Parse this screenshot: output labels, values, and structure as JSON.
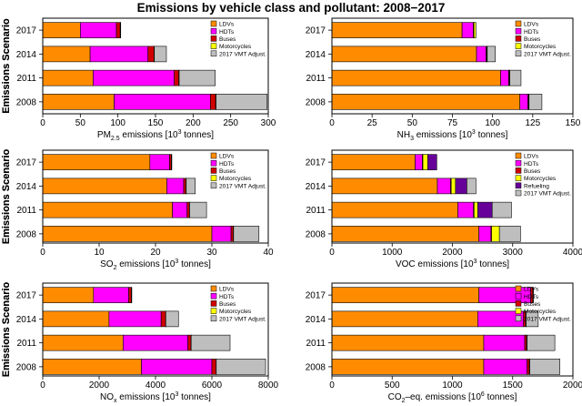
{
  "title": "Emissions by vehicle class and pollutant: 2008−2017",
  "colors": {
    "LDVs": "#ff8c00",
    "HDTs": "#ff00ff",
    "Buses": "#d10000",
    "Motorcycles": "#ffff00",
    "Refueling": "#660099",
    "2017 VMT Adjust.": "#bebebe"
  },
  "chart_data": [
    {
      "type": "bar",
      "stacked": true,
      "orientation": "horizontal",
      "xlabel_parts": [
        "PM",
        "2.5",
        " emissions [10",
        "3",
        " tonnes]"
      ],
      "ylabel": "Emissions Scenario",
      "categories": [
        "2017",
        "2014",
        "2011",
        "2008"
      ],
      "xlim": [
        0,
        300
      ],
      "xticks": [
        0,
        50,
        100,
        150,
        200,
        250,
        300
      ],
      "legend": [
        "LDVs",
        "HDTs",
        "Buses",
        "Motorcycles",
        "2017 VMT Adjust."
      ],
      "series": [
        {
          "name": "LDVs",
          "values": [
            50,
            63,
            67,
            95
          ]
        },
        {
          "name": "HDTs",
          "values": [
            48,
            77,
            108,
            128
          ]
        },
        {
          "name": "Buses",
          "values": [
            5,
            8,
            6,
            7
          ]
        },
        {
          "name": "Motorcycles",
          "values": [
            0.5,
            0.5,
            0.5,
            0.5
          ]
        },
        {
          "name": "2017 VMT Adjust.",
          "values": [
            0,
            16,
            48,
            68
          ]
        }
      ]
    },
    {
      "type": "bar",
      "stacked": true,
      "orientation": "horizontal",
      "xlabel_parts": [
        "NH",
        "3",
        " emissions [10",
        "3",
        " tonnes]"
      ],
      "ylabel": "Emissions Scenario",
      "categories": [
        "2017",
        "2014",
        "2011",
        "2008"
      ],
      "xlim": [
        0,
        150
      ],
      "xticks": [
        0,
        25,
        50,
        75,
        100,
        125,
        150
      ],
      "legend": [
        "LDVs",
        "HDTs",
        "Buses",
        "Motorcycles",
        "2017 VMT Adjust."
      ],
      "series": [
        {
          "name": "LDVs",
          "values": [
            81,
            90,
            105,
            117
          ]
        },
        {
          "name": "HDTs",
          "values": [
            7,
            6,
            5,
            5
          ]
        },
        {
          "name": "Buses",
          "values": [
            0.4,
            0.4,
            0.4,
            0.4
          ]
        },
        {
          "name": "Motorcycles",
          "values": [
            1.2,
            0.3,
            0.3,
            0.3
          ]
        },
        {
          "name": "2017 VMT Adjust.",
          "values": [
            0,
            5,
            7,
            8
          ]
        }
      ]
    },
    {
      "type": "bar",
      "stacked": true,
      "orientation": "horizontal",
      "xlabel_parts": [
        "SO",
        "2",
        " emissions [10",
        "3",
        " tonnes]"
      ],
      "ylabel": "Emissions Scenario",
      "categories": [
        "2017",
        "2014",
        "2011",
        "2008"
      ],
      "xlim": [
        0,
        40
      ],
      "xticks": [
        0,
        10,
        20,
        30,
        40
      ],
      "legend": [
        "LDVs",
        "HDTs",
        "Buses",
        "Motorcycles",
        "2017 VMT Adjust."
      ],
      "series": [
        {
          "name": "LDVs",
          "values": [
            19,
            22,
            23,
            30
          ]
        },
        {
          "name": "HDTs",
          "values": [
            3.5,
            3,
            2.6,
            3.4
          ]
        },
        {
          "name": "Buses",
          "values": [
            0.3,
            0.4,
            0.4,
            0.4
          ]
        },
        {
          "name": "Motorcycles",
          "values": [
            0.05,
            0.05,
            0.05,
            0.05
          ]
        },
        {
          "name": "2017 VMT Adjust.",
          "values": [
            0,
            1.6,
            3,
            4.5
          ]
        }
      ]
    },
    {
      "type": "bar",
      "stacked": true,
      "orientation": "horizontal",
      "xlabel_parts": [
        "VOC emissions [10",
        "3",
        " tonnes]"
      ],
      "ylabel": "Emissions Scenario",
      "categories": [
        "2017",
        "2014",
        "2011",
        "2008"
      ],
      "xlim": [
        0,
        4000
      ],
      "xticks": [
        0,
        1000,
        2000,
        3000,
        4000
      ],
      "legend": [
        "LDVs",
        "HDTs",
        "Buses",
        "Motorcycles",
        "Refueling",
        "2017 VMT Adjust."
      ],
      "series": [
        {
          "name": "LDVs",
          "values": [
            1380,
            1750,
            2090,
            2440
          ]
        },
        {
          "name": "HDTs",
          "values": [
            120,
            220,
            260,
            200
          ]
        },
        {
          "name": "Buses",
          "values": [
            10,
            10,
            10,
            10
          ]
        },
        {
          "name": "Motorcycles",
          "values": [
            80,
            70,
            60,
            130
          ]
        },
        {
          "name": "Refueling",
          "values": [
            150,
            190,
            240,
            0
          ]
        },
        {
          "name": "2017 VMT Adjust.",
          "values": [
            0,
            150,
            320,
            350
          ]
        }
      ]
    },
    {
      "type": "bar",
      "stacked": true,
      "orientation": "horizontal",
      "xlabel_parts": [
        "NO",
        "x",
        " emissions [10",
        "3",
        " tonnes]"
      ],
      "ylabel": "Emissions Scenario",
      "categories": [
        "2017",
        "2014",
        "2011",
        "2008"
      ],
      "xlim": [
        0,
        8000
      ],
      "xticks": [
        0,
        2000,
        4000,
        6000,
        8000
      ],
      "legend": [
        "LDVs",
        "HDTs",
        "Buses",
        "Motorcycles",
        "2017 VMT Adjust."
      ],
      "series": [
        {
          "name": "LDVs",
          "values": [
            1800,
            2350,
            2850,
            3500
          ]
        },
        {
          "name": "HDTs",
          "values": [
            1250,
            1850,
            2300,
            2500
          ]
        },
        {
          "name": "Buses",
          "values": [
            90,
            160,
            110,
            150
          ]
        },
        {
          "name": "Motorcycles",
          "values": [
            5,
            5,
            5,
            5
          ]
        },
        {
          "name": "2017 VMT Adjust.",
          "values": [
            0,
            450,
            1380,
            1750
          ]
        }
      ]
    },
    {
      "type": "bar",
      "stacked": true,
      "orientation": "horizontal",
      "xlabel_parts": [
        "CO",
        "2",
        "–eq. emissions [10",
        "6",
        " tonnes]"
      ],
      "ylabel": "Emissions Scenario",
      "categories": [
        "2017",
        "2014",
        "2011",
        "2008"
      ],
      "xlim": [
        0,
        2000
      ],
      "xticks": [
        0,
        500,
        1000,
        1500,
        2000
      ],
      "legend": [
        "LDVs",
        "HDTs",
        "Buses",
        "Motorcycles",
        "2017 VMT Adjust."
      ],
      "series": [
        {
          "name": "LDVs",
          "values": [
            1220,
            1210,
            1260,
            1260
          ]
        },
        {
          "name": "HDTs",
          "values": [
            430,
            380,
            340,
            360
          ]
        },
        {
          "name": "Buses",
          "values": [
            18,
            18,
            16,
            18
          ]
        },
        {
          "name": "Motorcycles",
          "values": [
            4,
            4,
            4,
            4
          ]
        },
        {
          "name": "2017 VMT Adjust.",
          "values": [
            0,
            100,
            230,
            250
          ]
        }
      ]
    }
  ]
}
